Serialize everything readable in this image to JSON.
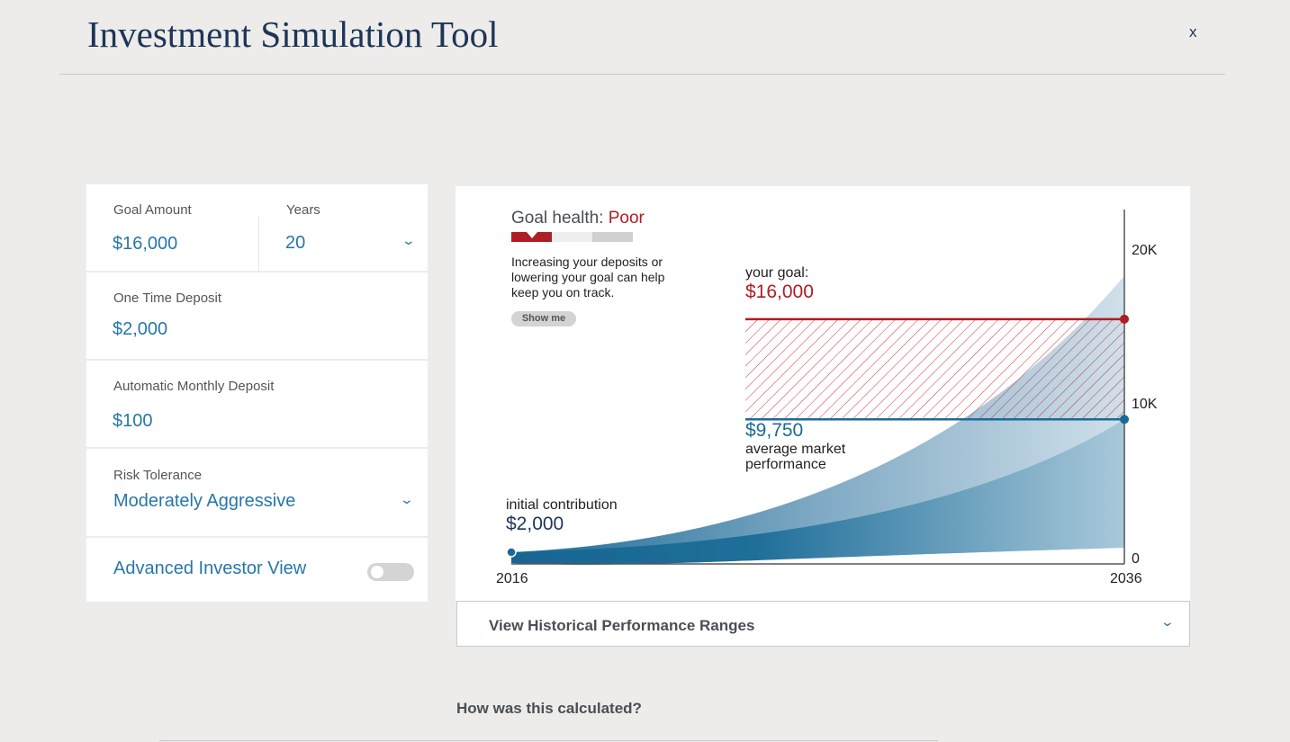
{
  "header": {
    "title": "Investment Simulation Tool",
    "close_label": "x"
  },
  "form": {
    "goal_amount": {
      "label": "Goal Amount",
      "value": "$16,000"
    },
    "years": {
      "label": "Years",
      "value": "20"
    },
    "one_time_deposit": {
      "label": "One Time Deposit",
      "value": "$2,000"
    },
    "monthly_deposit": {
      "label": "Automatic Monthly Deposit",
      "value": "$100"
    },
    "risk_tolerance": {
      "label": "Risk Tolerance",
      "value": "Moderately Aggressive"
    },
    "advanced_view": {
      "label": "Advanced Investor View",
      "enabled": false
    }
  },
  "goal_health": {
    "label": "Goal health:",
    "status": "Poor",
    "level": 1,
    "levels": 3,
    "message": "Increasing your deposits or lowering your goal can help keep you on track.",
    "show_me_label": "Show me",
    "status_color": "#b01d24"
  },
  "chart_data": {
    "type": "area",
    "x_ticks": [
      "2016",
      "2036"
    ],
    "y_ticks": [
      "0",
      "10K",
      "20K"
    ],
    "ylim": [
      0,
      20000
    ],
    "annotations": {
      "goal": {
        "label": "your goal:",
        "value": "$16,000",
        "amount": 16000
      },
      "average": {
        "value": "$9,750",
        "label": "average market performance",
        "amount": 9750
      },
      "initial": {
        "label": "initial contribution",
        "value": "$2,000",
        "amount": 2000
      }
    },
    "colors": {
      "goal": "#b01d24",
      "projection": "#1a6a96"
    }
  },
  "accordion": {
    "label": "View Historical Performance Ranges"
  },
  "footer": {
    "calc_link": "How was this calculated?"
  }
}
